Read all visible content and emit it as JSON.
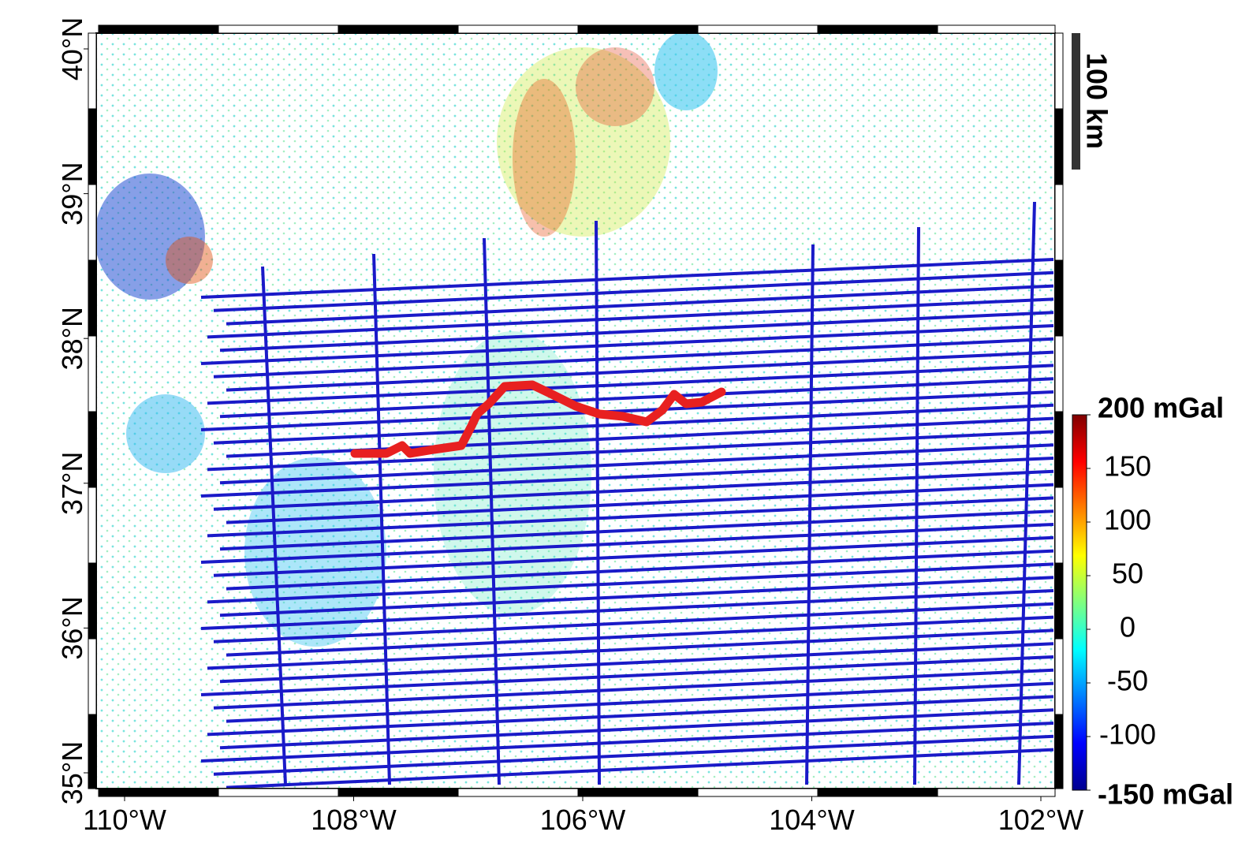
{
  "map": {
    "lon_ticks": [
      {
        "value": -110,
        "label": "110°W"
      },
      {
        "value": -108,
        "label": "108°W"
      },
      {
        "value": -106,
        "label": "106°W"
      },
      {
        "value": -104,
        "label": "104°W"
      },
      {
        "value": -102,
        "label": "102°W"
      }
    ],
    "lat_ticks": [
      {
        "value": 35,
        "label": "35°N"
      },
      {
        "value": 36,
        "label": "36°N"
      },
      {
        "value": 37,
        "label": "37°N"
      },
      {
        "value": 38,
        "label": "38°N"
      },
      {
        "value": 39,
        "label": "39°N"
      },
      {
        "value": 40,
        "label": "40°N"
      }
    ],
    "scale_bar": "100 km",
    "colorbar": {
      "range": [
        -150,
        200
      ],
      "ticks": [
        {
          "value": 200,
          "label": "200 mGal"
        },
        150,
        100,
        50,
        0,
        -50,
        -100,
        {
          "value": -150,
          "label": "-150 mGal"
        }
      ]
    }
  }
}
